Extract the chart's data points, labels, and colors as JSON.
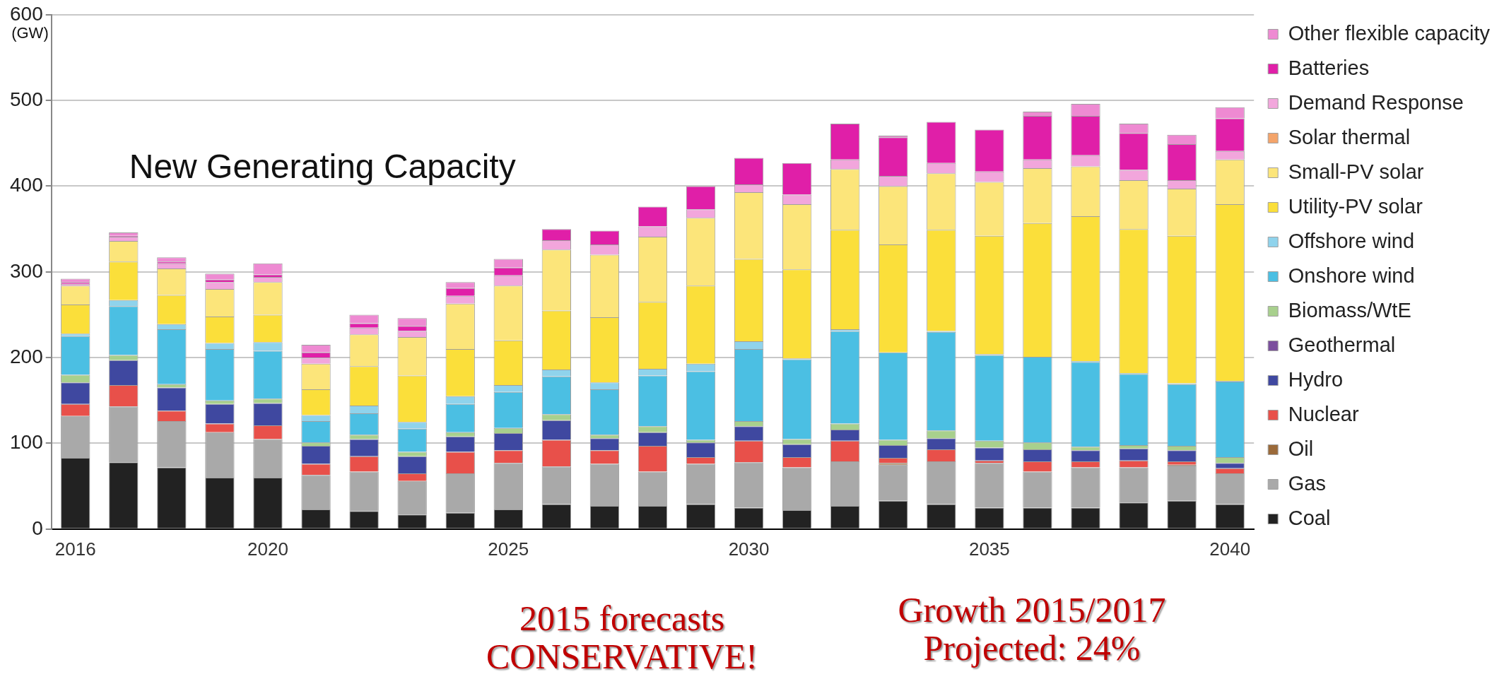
{
  "chart_data": {
    "type": "bar",
    "stacked": true,
    "title": "New Generating Capacity",
    "ylabel": "(GW)",
    "categories": [
      "2016",
      null,
      null,
      null,
      "2020",
      null,
      null,
      null,
      null,
      "2025",
      null,
      null,
      null,
      null,
      "2030",
      null,
      null,
      null,
      null,
      "2035",
      null,
      null,
      null,
      null,
      "2040"
    ],
    "ylim": [
      0,
      600
    ],
    "yticks": [
      0,
      100,
      200,
      300,
      400,
      500,
      600
    ],
    "grid": "y",
    "legend": "right",
    "annotations": [
      "2015 forecasts CONSERVATIVE!",
      "Growth 2015/2017 Projected: 24%"
    ],
    "series": [
      {
        "name": "Coal",
        "color": "#222222",
        "values": [
          83,
          78,
          72,
          60,
          60,
          23,
          21,
          17,
          19,
          23,
          29,
          27,
          27,
          29,
          25,
          22,
          27,
          33,
          29,
          25,
          25,
          25,
          31,
          33,
          29
        ]
      },
      {
        "name": "Gas",
        "color": "#a9a9a9",
        "values": [
          49,
          65,
          54,
          53,
          45,
          40,
          46,
          39,
          46,
          54,
          44,
          49,
          40,
          47,
          53,
          50,
          52,
          42,
          50,
          52,
          42,
          47,
          41,
          41,
          36
        ]
      },
      {
        "name": "Oil",
        "color": "#9b6a3a",
        "values": [
          0,
          0,
          0,
          0,
          0,
          0,
          0,
          0,
          0,
          0,
          0,
          0,
          0,
          0,
          0,
          0,
          0,
          2,
          0,
          0,
          0,
          0,
          0,
          1,
          0
        ]
      },
      {
        "name": "Nuclear",
        "color": "#e8504a",
        "values": [
          14,
          25,
          12,
          10,
          16,
          13,
          18,
          9,
          25,
          15,
          31,
          16,
          30,
          8,
          25,
          12,
          24,
          6,
          14,
          3,
          12,
          7,
          8,
          4,
          6
        ]
      },
      {
        "name": "Hydro",
        "color": "#3f48a0",
        "values": [
          25,
          29,
          27,
          23,
          26,
          21,
          20,
          20,
          18,
          20,
          23,
          14,
          16,
          17,
          17,
          15,
          13,
          15,
          13,
          15,
          14,
          13,
          14,
          13,
          6
        ]
      },
      {
        "name": "Geothermal",
        "color": "#7b4f9d",
        "values": [
          0,
          0,
          0,
          0,
          0,
          0,
          0,
          0,
          0,
          0,
          0,
          0,
          0,
          0,
          0,
          0,
          0,
          0,
          0,
          0,
          0,
          0,
          0,
          0,
          0
        ]
      },
      {
        "name": "Biomass/WtE",
        "color": "#a8d08d",
        "values": [
          9,
          6,
          4,
          4,
          5,
          4,
          5,
          5,
          5,
          6,
          7,
          4,
          7,
          3,
          6,
          6,
          7,
          6,
          9,
          8,
          8,
          4,
          4,
          5,
          7
        ]
      },
      {
        "name": "Onshore wind",
        "color": "#4bbfe3",
        "values": [
          45,
          57,
          64,
          60,
          56,
          25,
          25,
          27,
          33,
          42,
          44,
          53,
          59,
          80,
          84,
          93,
          108,
          102,
          115,
          100,
          100,
          99,
          83,
          72,
          88
        ]
      },
      {
        "name": "Offshore wind",
        "color": "#8fd3ec",
        "values": [
          3,
          7,
          6,
          7,
          10,
          7,
          9,
          8,
          9,
          8,
          8,
          8,
          8,
          9,
          9,
          1,
          2,
          null,
          1,
          1,
          0,
          1,
          1,
          1,
          1
        ]
      },
      {
        "name": "Utility-PV solar",
        "color": "#fbdf3a",
        "values": [
          34,
          45,
          34,
          31,
          32,
          30,
          46,
          54,
          55,
          52,
          69,
          76,
          78,
          91,
          96,
          104,
          116,
          126,
          118,
          138,
          156,
          169,
          168,
          172,
          206
        ]
      },
      {
        "name": "Small-PV solar",
        "color": "#fce57a",
        "values": [
          22,
          24,
          31,
          32,
          38,
          30,
          37,
          45,
          53,
          64,
          71,
          73,
          76,
          79,
          78,
          76,
          71,
          68,
          66,
          63,
          64,
          58,
          57,
          55,
          52
        ]
      },
      {
        "name": "Solar thermal",
        "color": "#f4a46a",
        "values": [
          0,
          0,
          0,
          0,
          0,
          0,
          0,
          0,
          0,
          0,
          0,
          0,
          0,
          0,
          0,
          0,
          0,
          0,
          0,
          0,
          0,
          0,
          0,
          0,
          0
        ]
      },
      {
        "name": "Demand Response",
        "color": "#f2a6dc",
        "values": [
          2,
          5,
          6,
          8,
          6,
          7,
          8,
          7,
          9,
          12,
          11,
          12,
          12,
          10,
          9,
          11,
          11,
          12,
          12,
          12,
          10,
          13,
          12,
          10,
          10
        ]
      },
      {
        "name": "Batteries",
        "color": "#e01fa8",
        "values": [
          2,
          1,
          2,
          3,
          3,
          6,
          5,
          6,
          9,
          9,
          13,
          16,
          23,
          27,
          31,
          37,
          42,
          45,
          48,
          49,
          51,
          46,
          43,
          42,
          38
        ]
      },
      {
        "name": "Other flexible capacity",
        "color": "#ee8ad2",
        "values": [
          4,
          4,
          5,
          7,
          13,
          9,
          10,
          9,
          7,
          10,
          0,
          0,
          0,
          0,
          0,
          0,
          0,
          2,
          0,
          0,
          5,
          14,
          11,
          11,
          13
        ]
      }
    ]
  }
}
